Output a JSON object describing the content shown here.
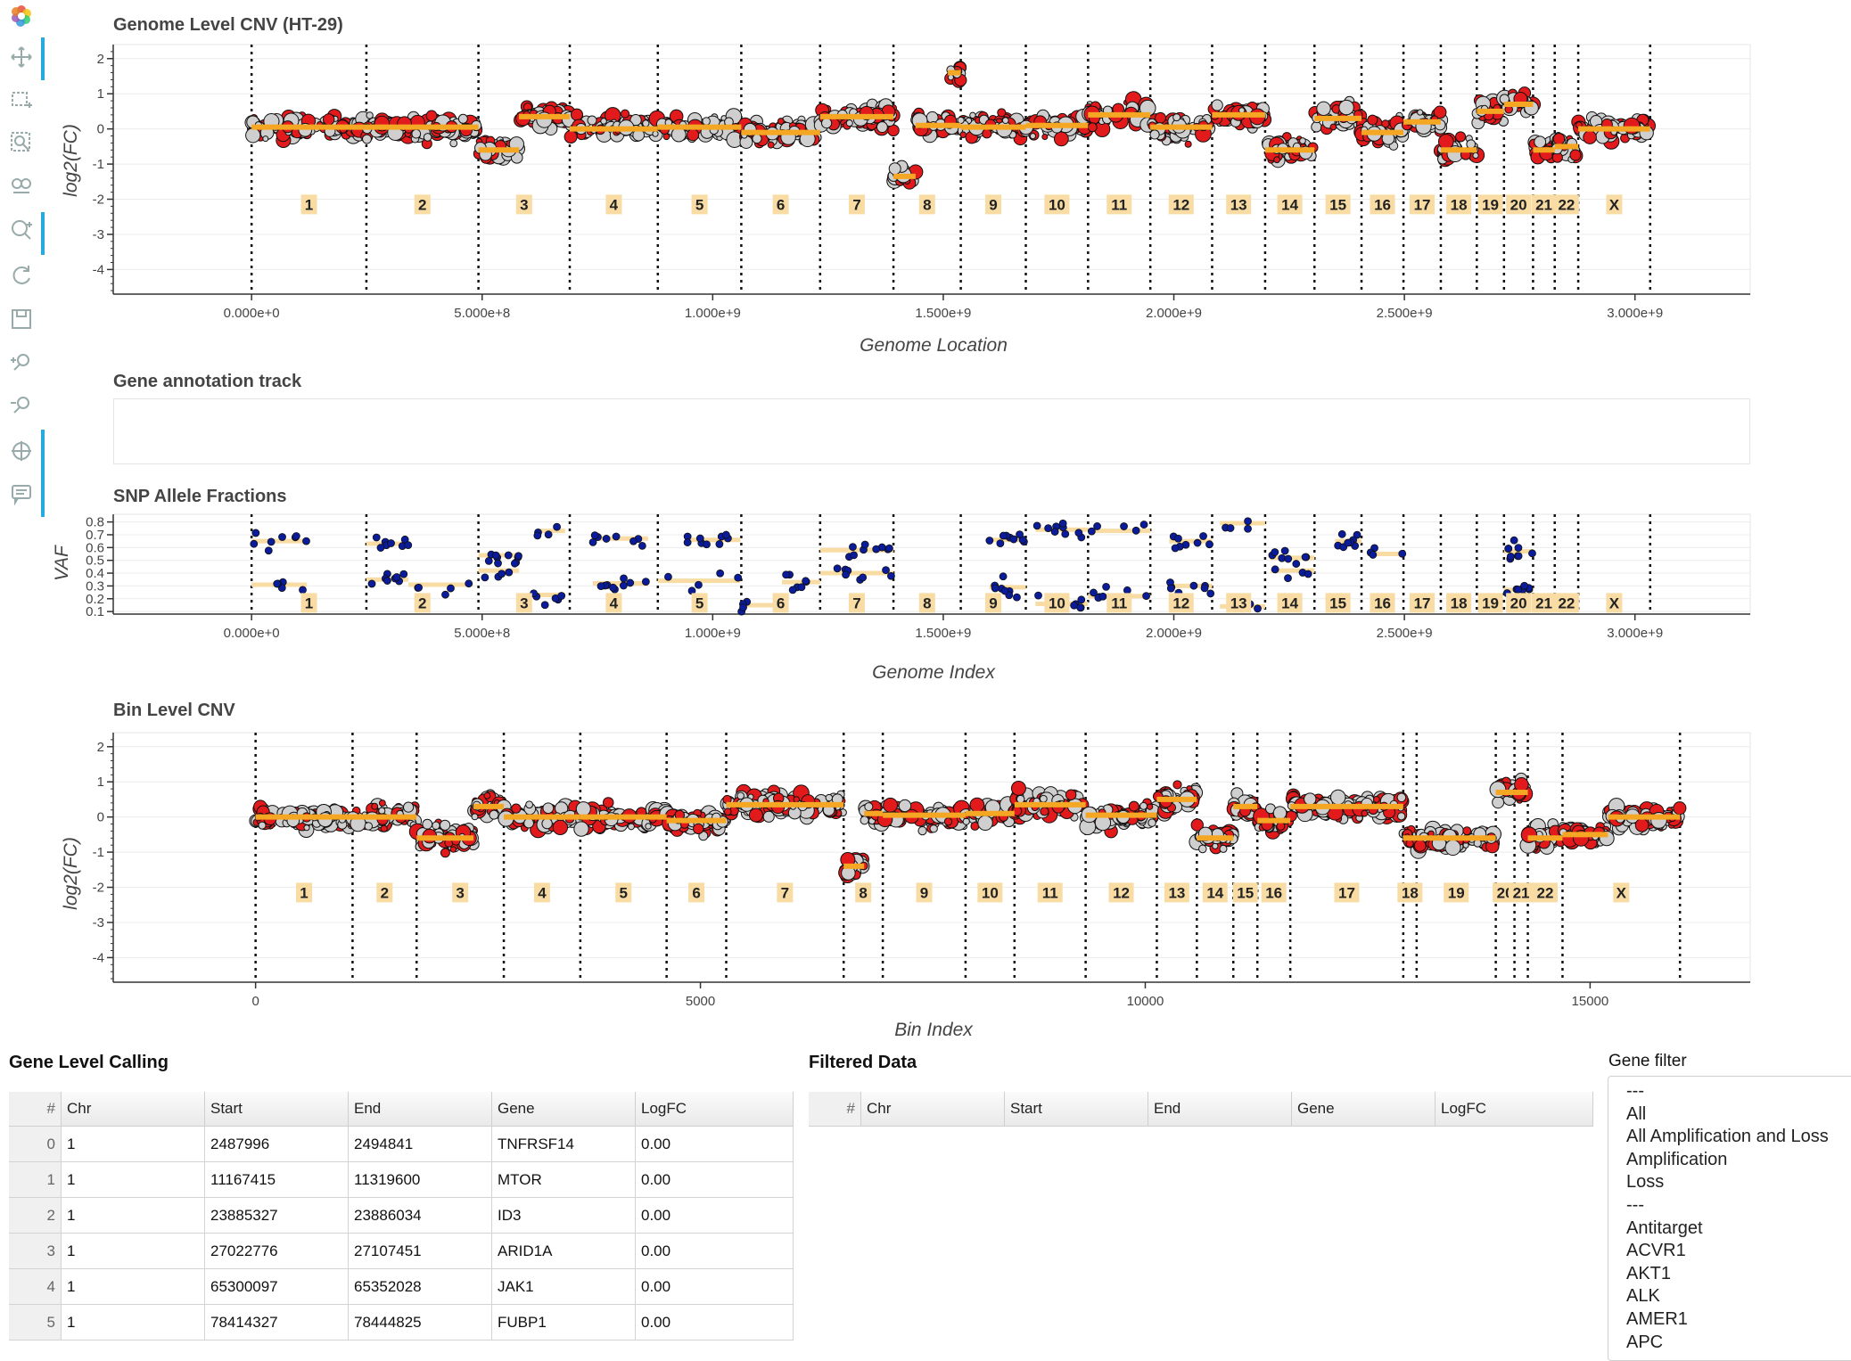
{
  "toolbar": {
    "tools": [
      "logo-icon",
      "pan-icon",
      "box-select-icon",
      "box-zoom-icon",
      "lasso-zoom-icon",
      "wheel-zoom-icon",
      "reset-icon",
      "save-icon",
      "zoom-in-icon",
      "zoom-out-icon",
      "crosshair-icon",
      "hover-icon"
    ]
  },
  "plot1": {
    "title": "Genome Level CNV (HT-29)",
    "xlabel": "Genome Location",
    "ylabel": "log2(FC)",
    "yticks": [
      "2",
      "1",
      "0",
      "-1",
      "-2",
      "-3",
      "-4"
    ],
    "xticks": [
      "0.000e+0",
      "5.000e+8",
      "1.000e+9",
      "1.500e+9",
      "2.000e+9",
      "2.500e+9",
      "3.000e+9"
    ]
  },
  "plot2": {
    "title": "Gene annotation track"
  },
  "plot3": {
    "title": "SNP Allele Fractions",
    "xlabel": "Genome Index",
    "ylabel": "VAF",
    "yticks": [
      "0.8",
      "0.7",
      "0.6",
      "0.5",
      "0.4",
      "0.3",
      "0.2",
      "0.1"
    ],
    "xticks": [
      "0.000e+0",
      "5.000e+8",
      "1.000e+9",
      "1.500e+9",
      "2.000e+9",
      "2.500e+9",
      "3.000e+9"
    ]
  },
  "plot4": {
    "title": "Bin Level CNV",
    "xlabel": "Bin Index",
    "ylabel": "log2(FC)",
    "yticks": [
      "2",
      "1",
      "0",
      "-1",
      "-2",
      "-3",
      "-4"
    ],
    "xticks": [
      "0",
      "5000",
      "10000",
      "15000"
    ]
  },
  "chromosomes": [
    "1",
    "2",
    "3",
    "4",
    "5",
    "6",
    "7",
    "8",
    "9",
    "10",
    "11",
    "12",
    "13",
    "14",
    "15",
    "16",
    "17",
    "18",
    "19",
    "20",
    "21",
    "22",
    "X"
  ],
  "colors": {
    "accent": "#26aae1",
    "segment": "#f5a623",
    "point_red": "#e31a1c",
    "point_grey": "#cfcfcf",
    "snp_blue": "#0a1b9c",
    "label_bg": "#f8dca4"
  },
  "chart_data": [
    {
      "type": "scatter",
      "title": "Genome Level CNV (HT-29)",
      "xlabel": "Genome Location",
      "ylabel": "log2(FC)",
      "xlim": [
        -300000000,
        3250000000
      ],
      "ylim": [
        -4.7,
        2.4
      ],
      "chrom_boundaries": [
        0,
        249000000,
        492000000,
        690000000,
        881000000,
        1062000000,
        1233000000,
        1392000000,
        1538000000,
        1679000000,
        1814000000,
        1949000000,
        2083000000,
        2198000000,
        2305000000,
        2407000000,
        2498000000,
        2579000000,
        2657000000,
        2716000000,
        2779000000,
        2826000000,
        2877000000,
        3033000000
      ],
      "segments": [
        {
          "chrom": "1",
          "x0": 0,
          "x1": 249000000,
          "y": 0.05
        },
        {
          "chrom": "2",
          "x0": 249000000,
          "x1": 492000000,
          "y": 0.05
        },
        {
          "chrom": "3",
          "x0": 492000000,
          "x1": 580000000,
          "y": -0.6
        },
        {
          "chrom": "3",
          "x0": 580000000,
          "x1": 690000000,
          "y": 0.35
        },
        {
          "chrom": "4",
          "x0": 690000000,
          "x1": 881000000,
          "y": 0.0
        },
        {
          "chrom": "5",
          "x0": 881000000,
          "x1": 1062000000,
          "y": 0.05
        },
        {
          "chrom": "6",
          "x0": 1062000000,
          "x1": 1233000000,
          "y": -0.1
        },
        {
          "chrom": "7",
          "x0": 1233000000,
          "x1": 1392000000,
          "y": 0.35
        },
        {
          "chrom": "8",
          "x0": 1392000000,
          "x1": 1440000000,
          "y": -1.35
        },
        {
          "chrom": "8",
          "x0": 1440000000,
          "x1": 1538000000,
          "y": 0.1
        },
        {
          "chrom": "8",
          "x0": 1510000000,
          "x1": 1538000000,
          "y": 1.6
        },
        {
          "chrom": "9",
          "x0": 1538000000,
          "x1": 1679000000,
          "y": 0.05
        },
        {
          "chrom": "10",
          "x0": 1679000000,
          "x1": 1814000000,
          "y": 0.1
        },
        {
          "chrom": "11",
          "x0": 1814000000,
          "x1": 1949000000,
          "y": 0.4
        },
        {
          "chrom": "12",
          "x0": 1949000000,
          "x1": 2083000000,
          "y": 0.05
        },
        {
          "chrom": "13",
          "x0": 2083000000,
          "x1": 2198000000,
          "y": 0.4
        },
        {
          "chrom": "14",
          "x0": 2198000000,
          "x1": 2305000000,
          "y": -0.6
        },
        {
          "chrom": "15",
          "x0": 2305000000,
          "x1": 2407000000,
          "y": 0.3
        },
        {
          "chrom": "16",
          "x0": 2407000000,
          "x1": 2498000000,
          "y": -0.1
        },
        {
          "chrom": "17",
          "x0": 2498000000,
          "x1": 2579000000,
          "y": 0.2
        },
        {
          "chrom": "18",
          "x0": 2579000000,
          "x1": 2657000000,
          "y": -0.6
        },
        {
          "chrom": "19",
          "x0": 2657000000,
          "x1": 2716000000,
          "y": 0.5
        },
        {
          "chrom": "20",
          "x0": 2716000000,
          "x1": 2779000000,
          "y": 0.7
        },
        {
          "chrom": "21",
          "x0": 2779000000,
          "x1": 2826000000,
          "y": -0.6
        },
        {
          "chrom": "22",
          "x0": 2826000000,
          "x1": 2877000000,
          "y": -0.5
        },
        {
          "chrom": "X",
          "x0": 2877000000,
          "x1": 3033000000,
          "y": 0.0
        }
      ]
    },
    {
      "type": "scatter",
      "title": "SNP Allele Fractions",
      "xlabel": "Genome Index",
      "ylabel": "VAF",
      "xlim": [
        -300000000,
        3250000000
      ],
      "ylim": [
        0.08,
        0.86
      ],
      "segments": [
        {
          "chrom": "1",
          "x0": 0,
          "x1": 120000000,
          "y": 0.65
        },
        {
          "chrom": "1",
          "x0": 0,
          "x1": 120000000,
          "y": 0.31
        },
        {
          "chrom": "2",
          "x0": 249000000,
          "x1": 340000000,
          "y": 0.63
        },
        {
          "chrom": "2",
          "x0": 249000000,
          "x1": 340000000,
          "y": 0.35
        },
        {
          "chrom": "2",
          "x0": 340000000,
          "x1": 480000000,
          "y": 0.31
        },
        {
          "chrom": "3",
          "x0": 492000000,
          "x1": 580000000,
          "y": 0.54
        },
        {
          "chrom": "3",
          "x0": 492000000,
          "x1": 580000000,
          "y": 0.42
        },
        {
          "chrom": "3",
          "x0": 620000000,
          "x1": 680000000,
          "y": 0.73
        },
        {
          "chrom": "3",
          "x0": 600000000,
          "x1": 680000000,
          "y": 0.23
        },
        {
          "chrom": "4",
          "x0": 740000000,
          "x1": 860000000,
          "y": 0.67
        },
        {
          "chrom": "4",
          "x0": 740000000,
          "x1": 860000000,
          "y": 0.32
        },
        {
          "chrom": "5",
          "x0": 881000000,
          "x1": 1060000000,
          "y": 0.34
        },
        {
          "chrom": "5",
          "x0": 940000000,
          "x1": 1060000000,
          "y": 0.66
        },
        {
          "chrom": "6",
          "x0": 1062000000,
          "x1": 1150000000,
          "y": 0.15
        },
        {
          "chrom": "6",
          "x0": 1150000000,
          "x1": 1233000000,
          "y": 0.33
        },
        {
          "chrom": "7",
          "x0": 1233000000,
          "x1": 1392000000,
          "y": 0.58
        },
        {
          "chrom": "7",
          "x0": 1233000000,
          "x1": 1392000000,
          "y": 0.4
        },
        {
          "chrom": "9",
          "x0": 1600000000,
          "x1": 1679000000,
          "y": 0.66
        },
        {
          "chrom": "9",
          "x0": 1600000000,
          "x1": 1679000000,
          "y": 0.29
        },
        {
          "chrom": "10",
          "x0": 1700000000,
          "x1": 1814000000,
          "y": 0.74
        },
        {
          "chrom": "10",
          "x0": 1700000000,
          "x1": 1814000000,
          "y": 0.16
        },
        {
          "chrom": "11",
          "x0": 1814000000,
          "x1": 1949000000,
          "y": 0.73
        },
        {
          "chrom": "11",
          "x0": 1814000000,
          "x1": 1949000000,
          "y": 0.22
        },
        {
          "chrom": "12",
          "x0": 1990000000,
          "x1": 2083000000,
          "y": 0.65
        },
        {
          "chrom": "12",
          "x0": 1990000000,
          "x1": 2083000000,
          "y": 0.3
        },
        {
          "chrom": "13",
          "x0": 2100000000,
          "x1": 2198000000,
          "y": 0.79
        },
        {
          "chrom": "13",
          "x0": 2100000000,
          "x1": 2198000000,
          "y": 0.14
        },
        {
          "chrom": "14",
          "x0": 2210000000,
          "x1": 2305000000,
          "y": 0.52
        },
        {
          "chrom": "14",
          "x0": 2210000000,
          "x1": 2305000000,
          "y": 0.42
        },
        {
          "chrom": "15",
          "x0": 2350000000,
          "x1": 2407000000,
          "y": 0.65
        },
        {
          "chrom": "16",
          "x0": 2420000000,
          "x1": 2498000000,
          "y": 0.55
        },
        {
          "chrom": "20",
          "x0": 2716000000,
          "x1": 2779000000,
          "y": 0.57
        },
        {
          "chrom": "20",
          "x0": 2716000000,
          "x1": 2779000000,
          "y": 0.27
        }
      ]
    },
    {
      "type": "scatter",
      "title": "Bin Level CNV",
      "xlabel": "Bin Index",
      "ylabel": "log2(FC)",
      "xlim": [
        -1600,
        16800
      ],
      "ylim": [
        -4.7,
        2.4
      ],
      "chrom_boundaries": [
        0,
        1090,
        1810,
        2790,
        3650,
        4620,
        5290,
        6610,
        7050,
        7980,
        8530,
        9330,
        10130,
        10580,
        10990,
        11260,
        11630,
        12900,
        13050,
        13940,
        14150,
        14300,
        14690,
        16010
      ],
      "segments": [
        {
          "chrom": "1",
          "x0": 0,
          "x1": 1090,
          "y": 0.0
        },
        {
          "chrom": "2",
          "x0": 1090,
          "x1": 1810,
          "y": 0.0
        },
        {
          "chrom": "3",
          "x0": 1810,
          "x1": 2450,
          "y": -0.6
        },
        {
          "chrom": "3",
          "x0": 2450,
          "x1": 2790,
          "y": 0.3
        },
        {
          "chrom": "4",
          "x0": 2790,
          "x1": 3650,
          "y": 0.0
        },
        {
          "chrom": "5",
          "x0": 3650,
          "x1": 4620,
          "y": 0.0
        },
        {
          "chrom": "6",
          "x0": 4620,
          "x1": 5290,
          "y": -0.1
        },
        {
          "chrom": "7",
          "x0": 5290,
          "x1": 6610,
          "y": 0.35
        },
        {
          "chrom": "8",
          "x0": 6610,
          "x1": 6840,
          "y": -1.4
        },
        {
          "chrom": "8",
          "x0": 6840,
          "x1": 7050,
          "y": 0.1
        },
        {
          "chrom": "9",
          "x0": 7050,
          "x1": 7980,
          "y": 0.05
        },
        {
          "chrom": "10",
          "x0": 7980,
          "x1": 8530,
          "y": 0.1
        },
        {
          "chrom": "11",
          "x0": 8530,
          "x1": 9330,
          "y": 0.35
        },
        {
          "chrom": "12",
          "x0": 9330,
          "x1": 10130,
          "y": 0.05
        },
        {
          "chrom": "13",
          "x0": 10130,
          "x1": 10580,
          "y": 0.5
        },
        {
          "chrom": "14",
          "x0": 10580,
          "x1": 10990,
          "y": -0.6
        },
        {
          "chrom": "15",
          "x0": 10990,
          "x1": 11260,
          "y": 0.3
        },
        {
          "chrom": "16",
          "x0": 11260,
          "x1": 11630,
          "y": -0.1
        },
        {
          "chrom": "17",
          "x0": 11630,
          "x1": 12900,
          "y": 0.3
        },
        {
          "chrom": "18",
          "x0": 12900,
          "x1": 13940,
          "y": -0.6
        },
        {
          "chrom": "19",
          "x0": 13940,
          "x1": 14150,
          "y": 0.7
        },
        {
          "chrom": "20",
          "x0": 14150,
          "x1": 14300,
          "y": 0.7
        },
        {
          "chrom": "21",
          "x0": 14300,
          "x1": 14690,
          "y": -0.6
        },
        {
          "chrom": "22",
          "x0": 14690,
          "x1": 15200,
          "y": -0.5
        },
        {
          "chrom": "X",
          "x0": 15200,
          "x1": 16010,
          "y": 0.0
        }
      ]
    }
  ],
  "gene_table": {
    "title": "Gene Level Calling",
    "columns": [
      "#",
      "Chr",
      "Start",
      "End",
      "Gene",
      "LogFC"
    ],
    "rows": [
      [
        "0",
        "1",
        "2487996",
        "2494841",
        "TNFRSF14",
        "0.00"
      ],
      [
        "1",
        "1",
        "11167415",
        "11319600",
        "MTOR",
        "0.00"
      ],
      [
        "2",
        "1",
        "23885327",
        "23886034",
        "ID3",
        "0.00"
      ],
      [
        "3",
        "1",
        "27022776",
        "27107451",
        "ARID1A",
        "0.00"
      ],
      [
        "4",
        "1",
        "65300097",
        "65352028",
        "JAK1",
        "0.00"
      ],
      [
        "5",
        "1",
        "78414327",
        "78444825",
        "FUBP1",
        "0.00"
      ]
    ]
  },
  "filtered_table": {
    "title": "Filtered Data",
    "columns": [
      "#",
      "Chr",
      "Start",
      "End",
      "Gene",
      "LogFC"
    ]
  },
  "gene_filter": {
    "label": "Gene filter",
    "options": [
      "---",
      "All",
      "All Amplification and Loss",
      "Amplification",
      "Loss",
      "---",
      "Antitarget",
      "ACVR1",
      "AKT1",
      "ALK",
      "AMER1",
      "APC"
    ]
  }
}
